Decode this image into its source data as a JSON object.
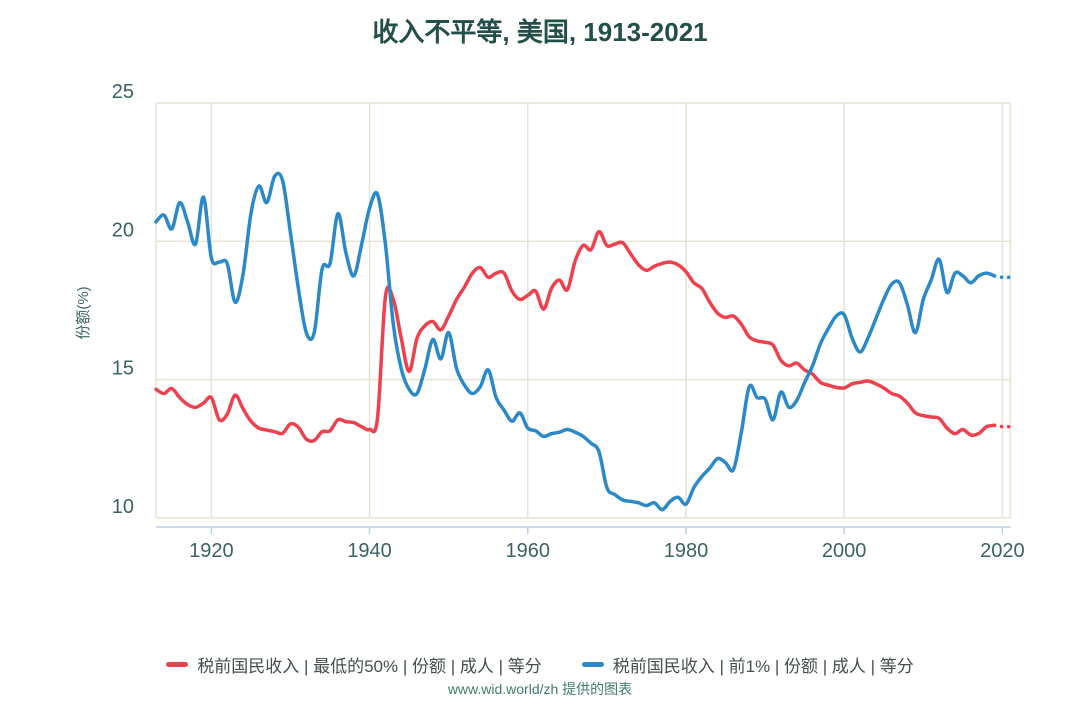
{
  "title": "收入不平等, 美国, 1913-2021",
  "footer": "www.wid.world/zh 提供的图表",
  "colors": {
    "bottom50": "#ee404d",
    "top1": "#2b89c8",
    "grid": "#e6e3d3",
    "axis_line": "#b9cfe8",
    "tick_label": "#3a6361",
    "title_color": "#234f49",
    "legend_text": "#454f4f",
    "footer_color": "#417c6d"
  },
  "legend": {
    "bottom50": "税前国民收入 | 最低的50% | 份额 | 成人 | 等分",
    "top1": "税前国民收入 | 前1% | 份额 | 成人 | 等分"
  },
  "chart_data": {
    "type": "line",
    "title": "收入不平等, 美国, 1913-2021",
    "ylabel": "份额(%)",
    "xlabel": "",
    "x_start": 1913,
    "x_end": 2021,
    "ylim": [
      10,
      25
    ],
    "yticks": [
      10,
      15,
      20,
      25
    ],
    "xticks": [
      1920,
      1940,
      1960,
      1980,
      2000,
      2020
    ],
    "grid": true,
    "legend_position": "bottom",
    "dashed_from_year": 2019,
    "series": [
      {
        "name": "税前国民收入 | 最低的50% | 份额 | 成人 | 等分",
        "color": "#ee404d",
        "values": [
          14.65,
          14.5,
          14.68,
          14.35,
          14.1,
          14.0,
          14.15,
          14.35,
          13.55,
          13.75,
          14.44,
          13.95,
          13.5,
          13.25,
          13.18,
          13.12,
          13.06,
          13.4,
          13.28,
          12.85,
          12.8,
          13.12,
          13.15,
          13.55,
          13.48,
          13.45,
          13.3,
          13.2,
          13.6,
          18.0,
          17.9,
          16.5,
          15.3,
          16.5,
          16.95,
          17.1,
          16.8,
          17.3,
          17.9,
          18.35,
          18.85,
          19.05,
          18.7,
          18.85,
          18.85,
          18.2,
          17.9,
          18.05,
          18.2,
          17.55,
          18.3,
          18.6,
          18.25,
          19.3,
          19.85,
          19.7,
          20.35,
          19.85,
          19.9,
          19.95,
          19.55,
          19.15,
          18.95,
          19.1,
          19.2,
          19.25,
          19.15,
          18.9,
          18.5,
          18.3,
          17.8,
          17.4,
          17.25,
          17.3,
          17.0,
          16.55,
          16.4,
          16.35,
          16.25,
          15.7,
          15.5,
          15.6,
          15.35,
          15.2,
          14.9,
          14.8,
          14.72,
          14.7,
          14.85,
          14.9,
          14.95,
          14.85,
          14.7,
          14.5,
          14.4,
          14.15,
          13.8,
          13.7,
          13.65,
          13.6,
          13.25,
          13.05,
          13.2,
          13.0,
          13.05,
          13.3,
          13.35,
          13.3,
          13.3
        ]
      },
      {
        "name": "税前国民收入 | 前1% | 份额 | 成人 | 等分",
        "color": "#2b89c8",
        "values": [
          20.7,
          20.95,
          20.45,
          21.4,
          20.7,
          19.9,
          21.6,
          19.4,
          19.25,
          19.2,
          17.8,
          18.8,
          21.0,
          22.0,
          21.4,
          22.35,
          22.2,
          20.3,
          18.3,
          16.7,
          16.7,
          19.0,
          19.2,
          21.0,
          19.6,
          18.75,
          19.9,
          21.2,
          21.7,
          19.9,
          17.0,
          15.4,
          14.65,
          14.5,
          15.4,
          16.45,
          15.75,
          16.7,
          15.4,
          14.8,
          14.5,
          14.75,
          15.35,
          14.35,
          13.9,
          13.5,
          13.8,
          13.25,
          13.15,
          12.95,
          13.05,
          13.1,
          13.2,
          13.1,
          12.95,
          12.7,
          12.4,
          11.1,
          10.85,
          10.65,
          10.6,
          10.55,
          10.45,
          10.55,
          10.3,
          10.6,
          10.75,
          10.5,
          11.1,
          11.5,
          11.8,
          12.15,
          12.0,
          11.75,
          13.1,
          14.75,
          14.35,
          14.3,
          13.55,
          14.55,
          14.0,
          14.25,
          14.9,
          15.5,
          16.3,
          16.85,
          17.3,
          17.35,
          16.5,
          16.0,
          16.5,
          17.2,
          17.9,
          18.45,
          18.5,
          17.7,
          16.7,
          17.9,
          18.6,
          19.35,
          18.15,
          18.85,
          18.75,
          18.5,
          18.75,
          18.85,
          18.75,
          18.7,
          18.7
        ]
      }
    ]
  }
}
